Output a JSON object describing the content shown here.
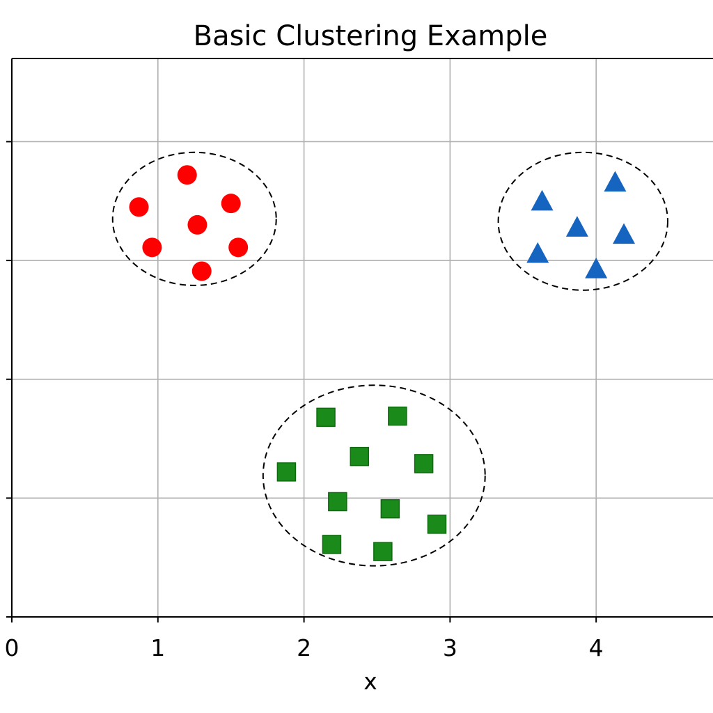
{
  "chart_data": {
    "type": "scatter",
    "title": "Basic Clustering Example",
    "xlabel": "x",
    "ylabel": "",
    "xlim": [
      0,
      4.8
    ],
    "ylim": [
      0,
      4.7
    ],
    "x_ticks": [
      0,
      1,
      2,
      3,
      4
    ],
    "y_ticks": [
      0,
      1,
      2,
      3,
      4
    ],
    "x_tick_labels": [
      "0",
      "1",
      "2",
      "3",
      "4"
    ],
    "y_tick_labels": [
      "",
      "",
      "",
      "",
      ""
    ],
    "grid": true,
    "series": [
      {
        "marker": "circle",
        "color": "#ff0000",
        "points": [
          [
            0.87,
            3.45
          ],
          [
            1.2,
            3.72
          ],
          [
            1.5,
            3.48
          ],
          [
            1.27,
            3.3
          ],
          [
            0.96,
            3.11
          ],
          [
            1.55,
            3.11
          ],
          [
            1.3,
            2.91
          ]
        ]
      },
      {
        "marker": "triangle",
        "color": "#1565c0",
        "points": [
          [
            3.63,
            3.5
          ],
          [
            4.13,
            3.66
          ],
          [
            3.87,
            3.28
          ],
          [
            4.19,
            3.22
          ],
          [
            3.6,
            3.06
          ],
          [
            4.0,
            2.93
          ]
        ]
      },
      {
        "marker": "square",
        "color": "#1a8a1a",
        "points": [
          [
            2.15,
            1.68
          ],
          [
            2.64,
            1.69
          ],
          [
            2.38,
            1.35
          ],
          [
            2.82,
            1.29
          ],
          [
            1.88,
            1.22
          ],
          [
            2.23,
            0.97
          ],
          [
            2.59,
            0.91
          ],
          [
            2.91,
            0.78
          ],
          [
            2.19,
            0.61
          ],
          [
            2.54,
            0.55
          ]
        ]
      }
    ],
    "cluster_outlines": [
      {
        "cx": 1.25,
        "cy": 3.35,
        "r": 0.56
      },
      {
        "cx": 3.91,
        "cy": 3.33,
        "r": 0.58
      },
      {
        "cx": 2.48,
        "cy": 1.19,
        "r": 0.76
      }
    ]
  }
}
